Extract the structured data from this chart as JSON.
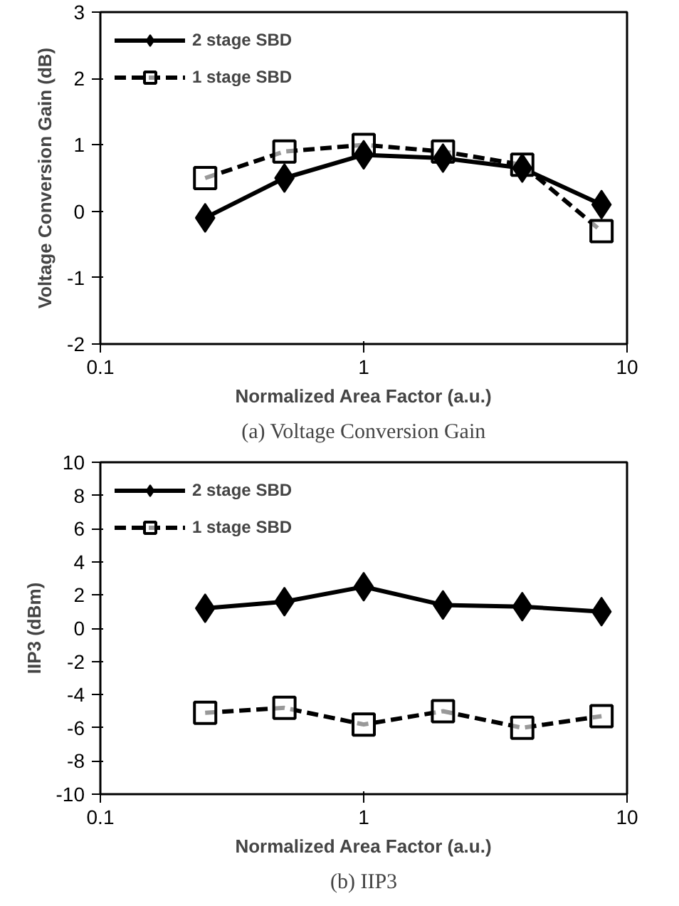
{
  "chart_data": [
    {
      "type": "line",
      "title": "(a) Voltage Conversion Gain",
      "xlabel": "Normalized Area Factor (a.u.)",
      "ylabel": "Voltage Conversion Gain (dB)",
      "log": "x",
      "xlim": [
        0.1,
        10
      ],
      "xticks": [
        0.1,
        1,
        10
      ],
      "ylim": [
        -2,
        3
      ],
      "yticks": [
        -2,
        -1,
        0,
        1,
        2,
        3
      ],
      "grid": false,
      "legend": "top left",
      "x": [
        0.25,
        0.5,
        1,
        2,
        4,
        8
      ],
      "series": [
        {
          "name": "2 stage SBD",
          "color": "#000000",
          "marker": "diamond",
          "line_style": "solid",
          "values": [
            -0.1,
            0.5,
            0.85,
            0.8,
            0.65,
            0.1
          ]
        },
        {
          "name": "1 stage SBD",
          "color": "#000000",
          "marker": "square",
          "line_style": "dashed",
          "values": [
            0.5,
            0.9,
            1.0,
            0.9,
            0.7,
            -0.3
          ]
        }
      ]
    },
    {
      "type": "line",
      "title": "(b) IIP3",
      "xlabel": "Normalized Area Factor (a.u.)",
      "ylabel": "IIP3 (dBm)",
      "log": "x",
      "xlim": [
        0.1,
        10
      ],
      "xticks": [
        0.1,
        1,
        10
      ],
      "ylim": [
        -10,
        10
      ],
      "yticks": [
        -10,
        -8,
        -6,
        -4,
        -2,
        0,
        2,
        4,
        6,
        8,
        10
      ],
      "grid": false,
      "legend": "top left",
      "x": [
        0.25,
        0.5,
        1,
        2,
        4,
        8
      ],
      "series": [
        {
          "name": "2 stage SBD",
          "color": "#000000",
          "marker": "diamond",
          "line_style": "solid",
          "values": [
            1.2,
            1.6,
            2.5,
            1.4,
            1.3,
            1.0
          ]
        },
        {
          "name": "1 stage SBD",
          "color": "#000000",
          "marker": "square",
          "line_style": "dashed",
          "values": [
            -5.1,
            -4.8,
            -5.8,
            -5.0,
            -6.0,
            -5.3
          ]
        }
      ]
    }
  ]
}
